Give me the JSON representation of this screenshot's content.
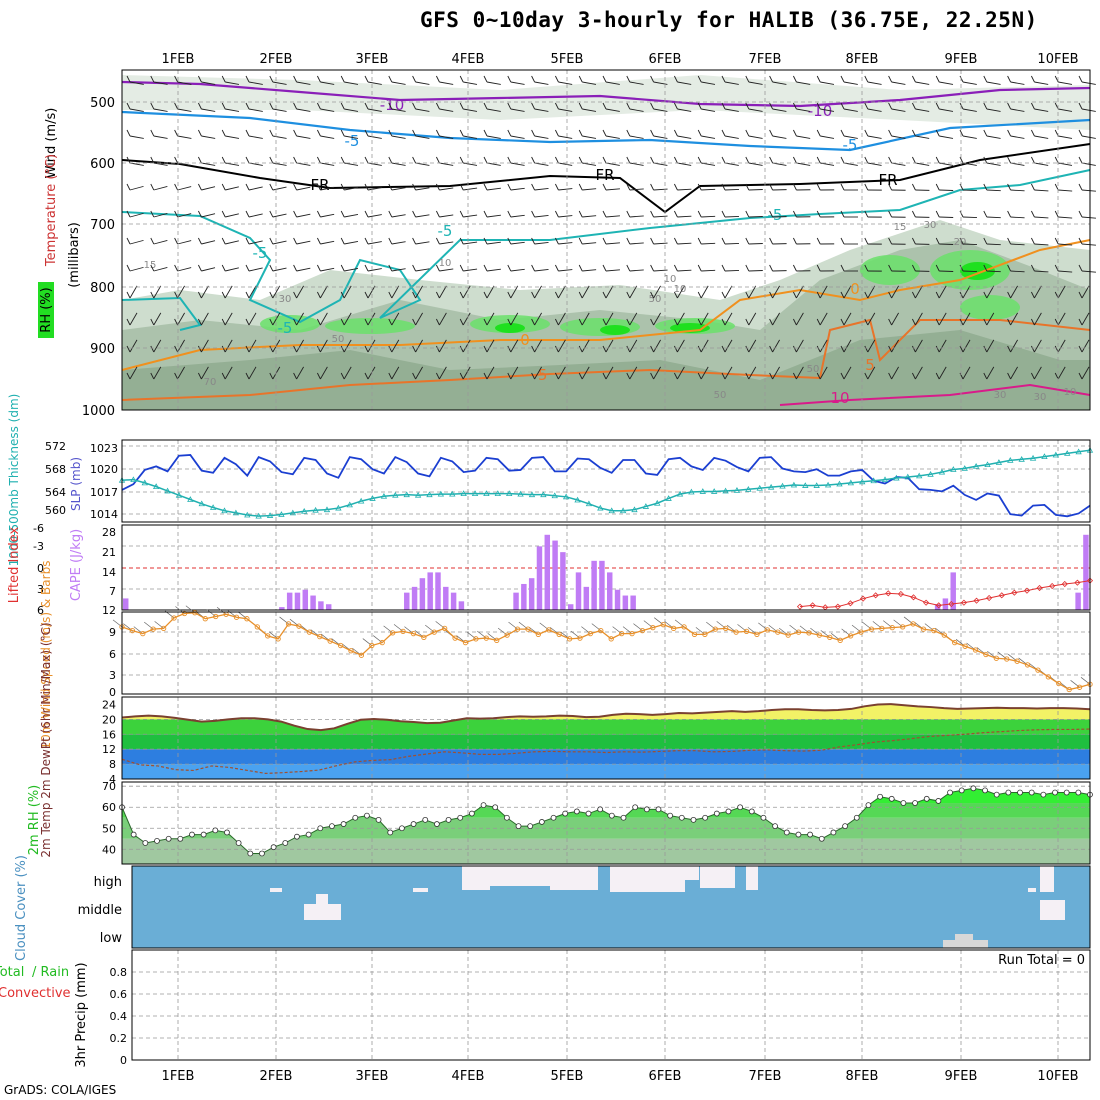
{
  "page": {
    "title": "GFS 0~10day 3-hourly for HALIB (36.75E, 22.25N)",
    "footer": "GrADS: COLA/IGES"
  },
  "colors": {
    "rh_green": "#22dd22",
    "rh_grey": "#a9bca9",
    "t_purple": "#8a1fb8",
    "t_blue": "#1e8fe0",
    "t_cyan": "#1eb4b4",
    "t_black": "#000000",
    "t_orange": "#f0901e",
    "t_magenta": "#d81b8a",
    "slp_blue": "#1b3fd1",
    "thickness_cyan": "#20b0b0",
    "cape_purple": "#c07cf5",
    "lifted_red": "#e03030",
    "wind_orange": "#e8902a",
    "temp_brown": "#7a4030",
    "dew_brown": "#a05030",
    "rh2m_green": "#33ee33",
    "cloud_blue": "#6aaed6",
    "cloud_white": "#f5f0f5"
  },
  "chart_data": [
    {
      "panel": "upper-air",
      "type": "heatmap",
      "dates": [
        "1FEB",
        "2FEB",
        "3FEB",
        "4FEB",
        "5FEB",
        "6FEB",
        "7FEB",
        "8FEB",
        "9FEB",
        "10FEB"
      ],
      "ylabel_rh": "RH (%)",
      "ylabel_temp": "Temperature (°C)",
      "ylabel_wind": "Wind (m/s)",
      "ylabel_p": "(millibars)",
      "y_ticks": [
        "500",
        "600",
        "700",
        "800",
        "900",
        "1000"
      ],
      "contour_labels": [
        "-10",
        "-10",
        "-5",
        "-5",
        "-5",
        "FR",
        "FR",
        "FR",
        "-5",
        "-5",
        "-5",
        "0",
        "0",
        "-5",
        "5",
        "10",
        "15",
        "15",
        "20",
        "10",
        "10",
        "30",
        "10",
        "30",
        "50",
        "50",
        "70",
        "50",
        "50",
        "30",
        "30",
        "10"
      ]
    },
    {
      "panel": "slp-thickness",
      "type": "line",
      "ylabel_left": "1000-500mb Thickness (dm)",
      "ylabel_right": "SLP (mb)",
      "thickness_ticks": [
        "572",
        "568",
        "564",
        "560"
      ],
      "slp_ticks": [
        "1023",
        "1020",
        "1017",
        "1014"
      ],
      "ylim_slp": [
        1012.5,
        1024
      ],
      "ylim_thick": [
        558.4,
        573.7
      ],
      "series": [
        {
          "name": "SLP (mb)",
          "values": [
            1017.0,
            1017.8,
            1019.8,
            1020.3,
            1019.6,
            1021.8,
            1021.9,
            1019.7,
            1019.4,
            1021.5,
            1020.6,
            1019.0,
            1021.6,
            1021.0,
            1019.5,
            1019.2,
            1021.5,
            1021.2,
            1019.3,
            1018.7,
            1021.6,
            1021.3,
            1019.9,
            1019.3,
            1021.6,
            1020.9,
            1019.3,
            1018.9,
            1021.5,
            1021.0,
            1019.5,
            1019.7,
            1021.5,
            1021.3,
            1019.7,
            1019.8,
            1021.5,
            1021.6,
            1019.6,
            1019.6,
            1021.4,
            1021.3,
            1020.1,
            1019.4,
            1021.2,
            1021.2,
            1019.3,
            1019.1,
            1021.3,
            1021.5,
            1020.3,
            1019.8,
            1021.5,
            1021.1,
            1020.2,
            1019.6,
            1021.5,
            1021.6,
            1020.0,
            1019.6,
            1019.5,
            1019.9,
            1019.0,
            1019.0,
            1019.6,
            1019.8,
            1018.3,
            1017.9,
            1018.8,
            1018.7,
            1017.1,
            1017.0,
            1016.8,
            1017.6,
            1016.3,
            1015.6,
            1016.5,
            1016.2,
            1013.6,
            1013.4,
            1014.8,
            1014.9,
            1013.5,
            1013.3,
            1013.7,
            1014.8
          ]
        },
        {
          "name": "1000-500mb Thickness (dm)",
          "values": [
            566.2,
            566.3,
            565.7,
            565.0,
            564.2,
            563.4,
            562.6,
            561.8,
            561.1,
            560.5,
            560.1,
            559.7,
            559.5,
            559.6,
            559.8,
            560.1,
            560.4,
            560.6,
            560.7,
            561.0,
            561.6,
            562.3,
            562.8,
            563.2,
            563.4,
            563.5,
            563.4,
            563.5,
            563.6,
            563.6,
            563.7,
            563.7,
            563.7,
            563.7,
            563.7,
            563.6,
            563.5,
            563.5,
            563.3,
            563.1,
            562.5,
            561.8,
            561.0,
            560.5,
            560.5,
            560.7,
            561.3,
            561.9,
            562.8,
            563.6,
            564.0,
            564.1,
            564.1,
            564.2,
            564.3,
            564.5,
            564.7,
            564.9,
            565.1,
            565.3,
            565.2,
            565.2,
            565.3,
            565.5,
            565.7,
            565.9,
            566.1,
            566.3,
            566.6,
            566.8,
            567.0,
            567.3,
            567.7,
            568.2,
            568.4,
            568.8,
            569.1,
            569.5,
            569.9,
            570.1,
            570.3,
            570.6,
            570.9,
            571.2,
            571.5,
            571.8
          ]
        }
      ]
    },
    {
      "panel": "cape-lifted",
      "type": "bar",
      "ylabel_left": "Lifted Index",
      "ylabel_right": "CAPE (J/kg)",
      "li_ticks": [
        "-6",
        "-3",
        "0",
        "3",
        "6"
      ],
      "cape_ticks": [
        "28",
        "21",
        "14",
        "7",
        "12"
      ],
      "series": [
        {
          "name": "CAPE (J/kg)",
          "values": [
            4,
            0,
            0,
            0,
            0,
            0,
            0,
            0,
            0,
            0,
            0,
            0,
            0,
            0,
            0,
            0,
            0,
            0,
            0,
            0,
            1,
            6,
            6,
            7,
            5,
            3,
            2,
            0,
            0,
            0,
            0,
            0,
            0,
            0,
            0,
            0,
            6,
            8,
            11,
            13,
            13,
            8,
            6,
            3,
            0,
            0,
            0,
            0,
            0,
            0,
            6,
            9,
            11,
            22,
            26,
            24,
            20,
            2,
            13,
            8,
            17,
            17,
            13,
            7,
            5,
            5,
            0,
            0,
            0,
            0,
            0,
            0,
            0,
            0,
            0,
            0,
            0,
            0,
            0,
            0,
            0,
            0,
            0,
            0,
            0,
            0,
            0,
            0,
            0,
            0,
            0,
            0,
            0,
            0,
            0,
            0,
            0,
            0,
            0,
            0,
            0,
            0,
            0,
            0,
            2,
            4,
            13,
            0,
            0,
            0,
            0,
            0,
            0,
            0,
            0,
            0,
            0,
            0,
            0,
            0,
            0,
            0,
            6,
            26
          ]
        },
        {
          "name": "Lifted Index",
          "values": [
            5.8,
            5.6,
            5.9,
            5.8,
            5.3,
            4.6,
            4.1,
            3.8,
            3.9,
            4.4,
            5.2,
            5.6,
            5.4,
            5.2,
            4.9,
            4.5,
            4.1,
            3.7,
            3.4,
            3.0,
            2.7,
            2.4,
            2.2,
            1.9
          ]
        }
      ]
    },
    {
      "panel": "wind-10m",
      "type": "line",
      "ylabel": "10m Wind Speed (m/s) & Barbs",
      "y_ticks": [
        "9",
        "6",
        "3",
        "0"
      ],
      "ylim": [
        0,
        11
      ],
      "series": [
        {
          "name": "10m Wind Speed",
          "values": [
            9.0,
            8.5,
            8.1,
            8.7,
            8.8,
            10.2,
            10.8,
            10.9,
            10.1,
            10.4,
            10.7,
            10.3,
            10.1,
            9.0,
            7.8,
            7.4,
            9.4,
            9.1,
            8.3,
            7.7,
            7.1,
            6.5,
            5.8,
            5.2,
            6.5,
            6.9,
            8.2,
            8.4,
            8.1,
            7.6,
            8.3,
            8.8,
            7.5,
            6.9,
            7.4,
            7.5,
            7.2,
            7.9,
            8.7,
            8.7,
            8.0,
            8.6,
            8.0,
            7.4,
            7.5,
            8.1,
            8.5,
            7.4,
            8.1,
            8.1,
            8.5,
            8.9,
            9.3,
            8.8,
            9.0,
            8.0,
            8.0,
            8.7,
            8.8,
            8.3,
            8.4,
            8.0,
            8.6,
            8.3,
            7.9,
            8.3,
            8.2,
            7.9,
            7.6,
            7.2,
            7.8,
            8.3,
            8.7,
            8.8,
            8.9,
            9.0,
            9.4,
            8.7,
            8.5,
            7.9,
            6.9,
            6.4,
            5.9,
            5.3,
            4.8,
            4.7,
            4.4,
            3.9,
            3.2,
            2.3,
            1.4,
            0.6,
            0.9,
            1.3
          ]
        }
      ]
    },
    {
      "panel": "temp-2m",
      "type": "line",
      "ylabel": "2m Temp 2m DewPt (6hr Min/Max) (°C)",
      "y_ticks": [
        "24",
        "20",
        "16",
        "12",
        "8",
        "4"
      ],
      "ylim": [
        4,
        26
      ],
      "series": [
        {
          "name": "2m Temp",
          "values": [
            20.5,
            20.8,
            21.0,
            20.8,
            20.4,
            19.9,
            19.4,
            19.6,
            20.0,
            20.3,
            20.3,
            20.0,
            19.4,
            18.3,
            17.4,
            17.1,
            17.6,
            18.8,
            19.9,
            20.1,
            19.9,
            19.5,
            19.3,
            19.0,
            19.1,
            19.7,
            20.3,
            20.2,
            20.3,
            20.6,
            20.8,
            20.7,
            20.8,
            21.0,
            20.9,
            20.6,
            20.7,
            21.2,
            21.5,
            21.4,
            21.2,
            21.4,
            21.7,
            21.6,
            21.8,
            22.0,
            22.2,
            22.0,
            22.2,
            22.5,
            22.7,
            22.7,
            22.5,
            22.4,
            22.5,
            22.8,
            23.5,
            24.0,
            24.1,
            23.8,
            23.5,
            23.3,
            23.0,
            22.8,
            22.9,
            23.0,
            23.1,
            23.0,
            23.0,
            22.9,
            23.0,
            23.0,
            22.9,
            22.7
          ]
        },
        {
          "name": "2m DewPt",
          "values": [
            9.3,
            7.8,
            7.5,
            6.5,
            6.3,
            7.5,
            7.1,
            6.3,
            5.5,
            5.7,
            6.0,
            6.4,
            7.6,
            8.6,
            9.0,
            9.2,
            10.1,
            10.7,
            11.3,
            11.0,
            10.6,
            10.6,
            10.9,
            11.3,
            11.4,
            11.3,
            11.3,
            11.1,
            11.3,
            11.2,
            11.4,
            11.6,
            11.6,
            11.3,
            11.4,
            11.7,
            11.8,
            11.6,
            11.5,
            11.7,
            12.6,
            13.2,
            13.9,
            14.3,
            14.8,
            15.4,
            15.7,
            16.0,
            16.4,
            16.7,
            17.0,
            17.2,
            17.3,
            17.3,
            17.4
          ]
        }
      ]
    },
    {
      "panel": "rh-2m",
      "type": "area",
      "ylabel": "2m RH (%)",
      "y_ticks": [
        "70",
        "60",
        "50",
        "40"
      ],
      "ylim": [
        33,
        72
      ],
      "series": [
        {
          "name": "2m RH",
          "values": [
            60,
            47,
            43,
            44,
            45,
            45,
            47,
            47,
            49,
            48,
            43,
            38,
            38,
            41,
            43,
            46,
            47,
            50,
            51,
            52,
            55,
            56,
            54,
            48,
            50,
            52,
            54,
            52,
            54,
            55,
            57,
            61,
            60,
            55,
            51,
            51,
            53,
            55,
            57,
            58,
            57,
            59,
            56,
            55,
            60,
            59,
            59,
            56,
            55,
            54,
            55,
            57,
            58,
            60,
            58,
            55,
            51,
            48,
            47,
            47,
            45,
            48,
            51,
            55,
            61,
            65,
            64,
            62,
            62,
            64,
            63,
            67,
            68,
            69,
            68,
            66,
            67,
            67,
            67,
            66,
            67,
            67,
            67,
            66
          ]
        }
      ]
    },
    {
      "panel": "cloud-cover",
      "type": "heatmap",
      "ylabel": "Cloud Cover (%)",
      "y_ticks": [
        "high",
        "middle",
        "low"
      ]
    },
    {
      "panel": "precip",
      "type": "bar",
      "ylabel": "3hr Precip (mm)",
      "legend_total": "Total",
      "legend_rain": "/ Rain",
      "legend_convective": "Convective",
      "run_total": "Run Total = 0",
      "y_ticks": [
        "0.8",
        "0.6",
        "0.4",
        "0.2",
        "0"
      ],
      "ylim": [
        0,
        1
      ]
    }
  ]
}
